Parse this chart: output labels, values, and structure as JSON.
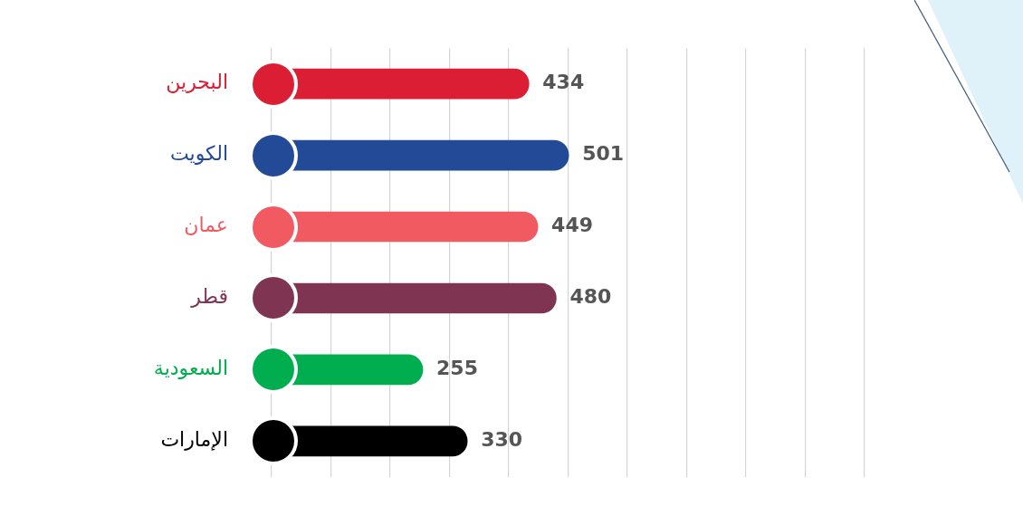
{
  "chart_data": {
    "type": "bar",
    "orientation": "horizontal",
    "categories": [
      "البحرين",
      "الكويت",
      "عمان",
      "قطر",
      "السعودية",
      "الإمارات"
    ],
    "values": [
      434,
      501,
      449,
      480,
      255,
      330
    ],
    "colors": [
      "#dc1e35",
      "#234a96",
      "#f25a62",
      "#7f3452",
      "#00ad4f",
      "#000000"
    ],
    "xlim": [
      0,
      1000
    ],
    "xticks": [
      {
        "value": 0,
        "label": null
      },
      {
        "value": 100,
        "label": null
      },
      {
        "value": 200,
        "label": null
      },
      {
        "value": 300,
        "label": null
      },
      {
        "value": 400,
        "label": null
      },
      {
        "value": 500,
        "label": null
      },
      {
        "value": 600,
        "label": null
      },
      {
        "value": 700,
        "label": null
      },
      {
        "value": 800,
        "label": null
      },
      {
        "value": 900,
        "label": null
      },
      {
        "value": 1000,
        "label": null
      }
    ],
    "grid": "x",
    "data_labels": true,
    "marker": "circle",
    "legend": false
  }
}
